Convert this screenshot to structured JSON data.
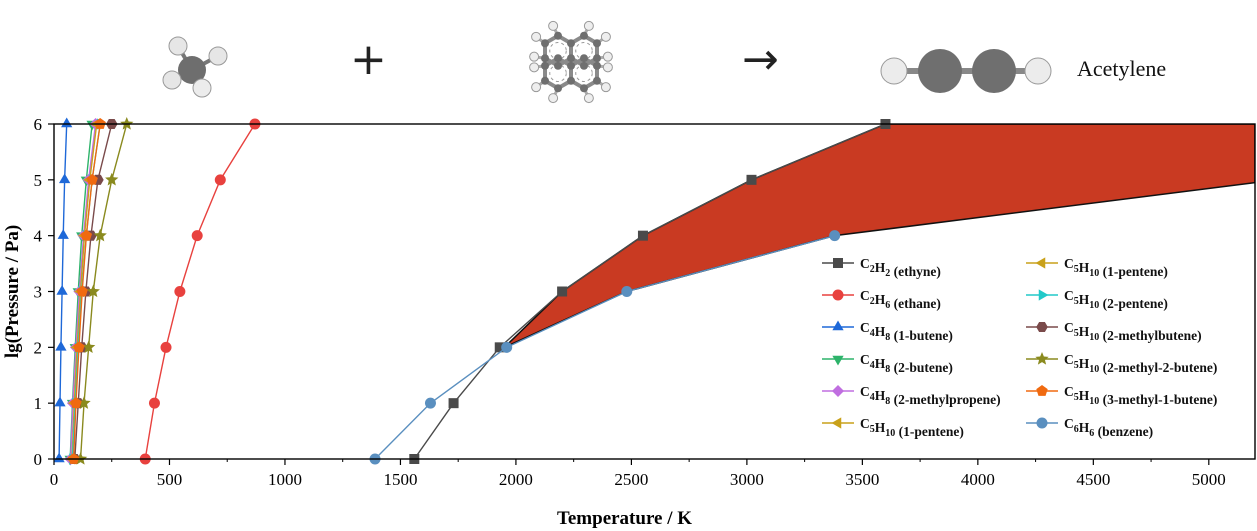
{
  "header": {
    "plus_sign": "+",
    "arrow_sign": "→",
    "product_label": "Acetylene",
    "reactant1_icon": "methane-molecule-icon",
    "reactant2_icon": "pyrene-molecule-icon",
    "product_icon": "acetylene-molecule-icon"
  },
  "chart_data": {
    "type": "line",
    "xlabel": "Temperature / K",
    "ylabel": "lg(Pressure / Pa)",
    "xlim": [
      0,
      5200
    ],
    "ylim": [
      0,
      6
    ],
    "xticks": [
      0,
      500,
      1000,
      1500,
      2000,
      2500,
      3000,
      3500,
      4000,
      4500,
      5000
    ],
    "yticks": [
      0,
      1,
      2,
      3,
      4,
      5,
      6
    ],
    "grid": false,
    "legend_position": "bottom-right",
    "shaded_region": {
      "color": "#c93a22",
      "upper": [
        [
          1950,
          2
        ],
        [
          2200,
          3
        ],
        [
          2550,
          4
        ],
        [
          3020,
          5
        ],
        [
          3600,
          6
        ],
        [
          5200,
          6
        ]
      ],
      "lower": [
        [
          1950,
          2
        ],
        [
          2480,
          3
        ],
        [
          3380,
          4
        ],
        [
          5200,
          4.95
        ]
      ]
    },
    "series": [
      {
        "name": "C2H2 (ethyne)",
        "formula": [
          "C",
          "2",
          "H",
          "2"
        ],
        "suffix": " (ethyne)",
        "marker": "square",
        "color": "#4a4a4a",
        "x": [
          1560,
          1730,
          1930,
          2200,
          2550,
          3020,
          3600
        ],
        "y": [
          0,
          1,
          2,
          3,
          4,
          5,
          6
        ]
      },
      {
        "name": "C2H6 (ethane)",
        "formula": [
          "C",
          "2",
          "H",
          "6"
        ],
        "suffix": " (ethane)",
        "marker": "circle",
        "color": "#e8413e",
        "x": [
          395,
          435,
          485,
          545,
          620,
          720,
          870
        ],
        "y": [
          0,
          1,
          2,
          3,
          4,
          5,
          6
        ]
      },
      {
        "name": "C4H8 (1-butene)",
        "formula": [
          "C",
          "4",
          "H",
          "8"
        ],
        "suffix": " (1-butene)",
        "marker": "triangle-up",
        "color": "#1e68d8",
        "x": [
          22,
          26,
          30,
          35,
          40,
          46,
          55
        ],
        "y": [
          0,
          1,
          2,
          3,
          4,
          5,
          6
        ]
      },
      {
        "name": "C4H8 (2-butene)",
        "formula": [
          "C",
          "4",
          "H",
          "8"
        ],
        "suffix": " (2-butene)",
        "marker": "triangle-down",
        "color": "#2db36a",
        "x": [
          70,
          80,
          92,
          105,
          120,
          140,
          165
        ],
        "y": [
          0,
          1,
          2,
          3,
          4,
          5,
          6
        ]
      },
      {
        "name": "C4H8 (2-methylpropene)",
        "formula": [
          "C",
          "4",
          "H",
          "8"
        ],
        "suffix": " (2-methylpropene)",
        "marker": "diamond",
        "color": "#c06ee0",
        "x": [
          72,
          82,
          95,
          110,
          128,
          150,
          180
        ],
        "y": [
          0,
          1,
          2,
          3,
          4,
          5,
          6
        ]
      },
      {
        "name": "C5H10 (1-pentene)",
        "formula": [
          "C",
          "5",
          "H",
          "10"
        ],
        "suffix": " (1-pentene)",
        "marker": "triangle-left",
        "color": "#c9a11a",
        "x": [
          78,
          88,
          100,
          115,
          132,
          155,
          185
        ],
        "y": [
          0,
          1,
          2,
          3,
          4,
          5,
          6
        ]
      },
      {
        "name": "C5H10 (2-pentene)",
        "formula": [
          "C",
          "5",
          "H",
          "10"
        ],
        "suffix": " (2-pentene)",
        "marker": "triangle-right",
        "color": "#22c9c9",
        "x": [
          80,
          92,
          105,
          120,
          140,
          165,
          200
        ],
        "y": [
          0,
          1,
          2,
          3,
          4,
          5,
          6
        ]
      },
      {
        "name": "C5H10 (2-methylbutene)",
        "formula": [
          "C",
          "5",
          "H",
          "10"
        ],
        "suffix": " (2-methylbutene)",
        "marker": "hexagon",
        "color": "#7a4a4a",
        "x": [
          90,
          105,
          120,
          138,
          160,
          190,
          250
        ],
        "y": [
          0,
          1,
          2,
          3,
          4,
          5,
          6
        ]
      },
      {
        "name": "C5H10 (2-methyl-2-butene)",
        "formula": [
          "C",
          "5",
          "H",
          "10"
        ],
        "suffix": " (2-methyl-2-butene)",
        "marker": "star",
        "color": "#8a8a1e",
        "x": [
          115,
          130,
          150,
          170,
          200,
          250,
          315
        ],
        "y": [
          0,
          1,
          2,
          3,
          4,
          5,
          6
        ]
      },
      {
        "name": "C5H10 (3-methyl-1-butene)",
        "formula": [
          "C",
          "5",
          "H",
          "10"
        ],
        "suffix": " (3-methyl-1-butene)",
        "marker": "pentagon",
        "color": "#f06a10",
        "x": [
          85,
          95,
          108,
          122,
          140,
          165,
          200
        ],
        "y": [
          0,
          1,
          2,
          3,
          4,
          5,
          6
        ]
      },
      {
        "name": "C5H10 (1-pentene)",
        "formula": [
          "C",
          "5",
          "H",
          "10"
        ],
        "suffix": " (1-pentene)",
        "marker": "triangle-left",
        "color": "#c9a11a",
        "x": [
          78,
          88,
          100,
          115,
          132,
          155,
          185
        ],
        "y": [
          0,
          1,
          2,
          3,
          4,
          5,
          6
        ]
      },
      {
        "name": "C6H6 (benzene)",
        "formula": [
          "C",
          "6",
          "H",
          "6"
        ],
        "suffix": " (benzene)",
        "marker": "circle",
        "color": "#5a8fbf",
        "x": [
          1390,
          1630,
          1960,
          2480,
          3380
        ],
        "y": [
          0,
          1,
          2,
          3,
          4
        ]
      }
    ]
  }
}
